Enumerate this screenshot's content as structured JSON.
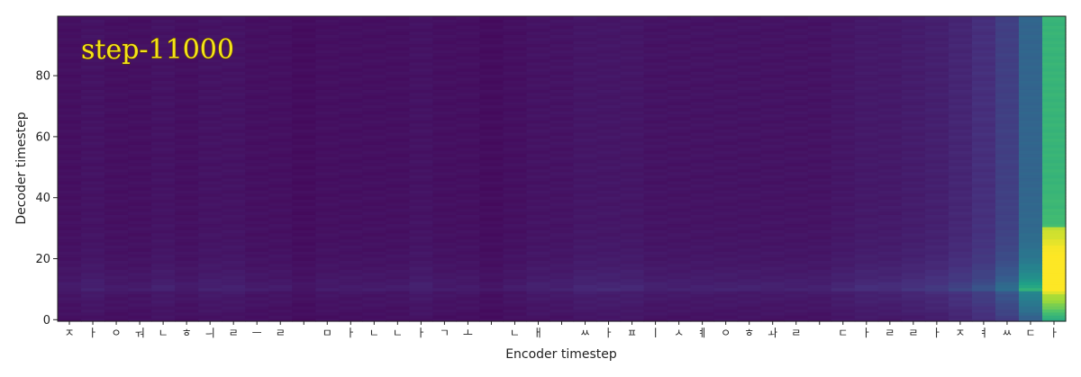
{
  "chart_data": {
    "type": "heatmap",
    "annotation": "step-11000",
    "xlabel": "Encoder timestep",
    "ylabel": "Decoder timestep",
    "ylim": [
      0,
      99
    ],
    "yticks": [
      "0",
      "20",
      "40",
      "60",
      "80"
    ],
    "x_tick_labels": [
      "ㅈ",
      "ㅏ",
      "ㅇ",
      "ㅝ",
      "ㄴ",
      "ㅎ",
      "ㅢ",
      "ㄹ",
      "ㅡ",
      "ㄹ",
      " ",
      "ㅁ",
      "ㅏ",
      "ㄴ",
      "ㄴ",
      "ㅏ",
      "ㄱ",
      "ㅗ",
      " ",
      "ㄴ",
      "ㅐ",
      " ",
      "ㅆ",
      "ㅏ",
      "ㅍ",
      "ㅣ",
      "ㅅ",
      "ㅖ",
      "ㅇ",
      "ㅎ",
      "ㅘ",
      "ㄹ",
      " ",
      "ㄷ",
      "ㅏ",
      "ㄹ",
      "ㄹ",
      "ㅏ",
      "ㅈ",
      "ㅕ",
      "ㅆ",
      "ㄷ",
      "ㅏ"
    ],
    "colormap": [
      "#440154",
      "#46327e",
      "#365c8d",
      "#277f8e",
      "#1fa187",
      "#4ac16d",
      "#a0da39",
      "#fde725"
    ],
    "column_weights": [
      0.04,
      0.05,
      0.04,
      0.04,
      0.05,
      0.04,
      0.05,
      0.05,
      0.04,
      0.04,
      0.03,
      0.04,
      0.04,
      0.04,
      0.04,
      0.05,
      0.04,
      0.04,
      0.03,
      0.04,
      0.05,
      0.05,
      0.06,
      0.06,
      0.06,
      0.05,
      0.05,
      0.05,
      0.05,
      0.05,
      0.05,
      0.05,
      0.05,
      0.06,
      0.07,
      0.07,
      0.08,
      0.09,
      0.11,
      0.14,
      0.2,
      0.35,
      0.72
    ],
    "row_profile": [
      0.85,
      0.88,
      0.95,
      1.0,
      1.05,
      1.1,
      1.15,
      1.2,
      1.2,
      1.3,
      1.8,
      1.7,
      1.6,
      1.45,
      1.4,
      1.35,
      1.3,
      1.25,
      1.2,
      1.15,
      1.12,
      1.1,
      1.08,
      1.05,
      1.03,
      1.0,
      1.0,
      0.98,
      0.97,
      0.96,
      0.95,
      0.95,
      0.94,
      0.94,
      0.93,
      0.93,
      0.93,
      0.92,
      0.92,
      0.92,
      0.92,
      0.91,
      0.91,
      0.91,
      0.9,
      0.9,
      0.9,
      0.9,
      0.9,
      0.9,
      0.9,
      0.9,
      0.9,
      0.9,
      0.9,
      0.9,
      0.9,
      0.9,
      0.9,
      0.9,
      0.9,
      0.9,
      0.9,
      0.9,
      0.9,
      0.9,
      0.9,
      0.9,
      0.9,
      0.9,
      0.9,
      0.9,
      0.9,
      0.9,
      0.9,
      0.9,
      0.9,
      0.9,
      0.9,
      0.9,
      0.9,
      0.9,
      0.9,
      0.9,
      0.9,
      0.9,
      0.9,
      0.9,
      0.9,
      0.9,
      0.9,
      0.9,
      0.9,
      0.9,
      0.9,
      0.9,
      0.9,
      0.9,
      0.9,
      0.9
    ]
  }
}
